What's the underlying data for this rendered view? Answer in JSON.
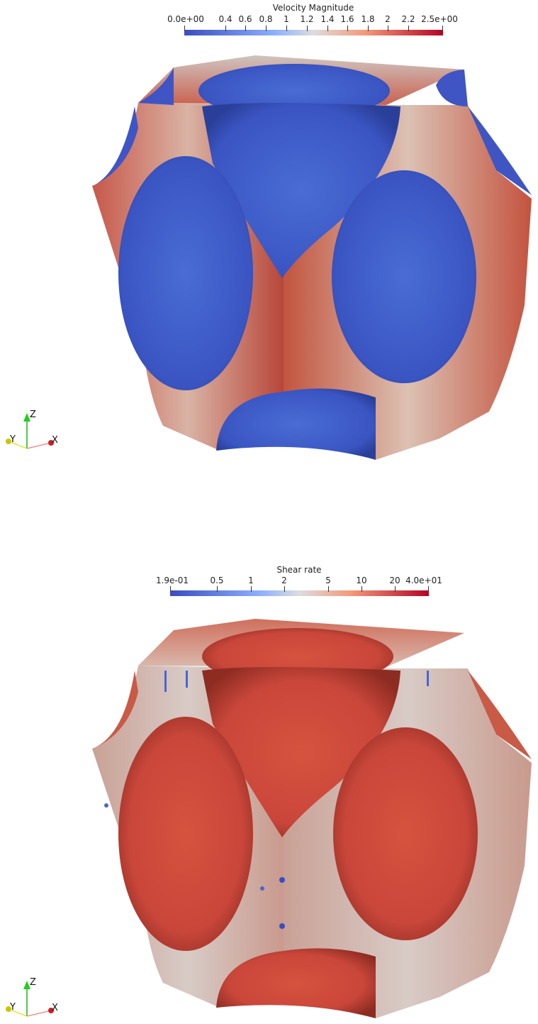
{
  "velocity_panel": {
    "colorbar": {
      "title": "Velocity Magnitude",
      "labels": [
        "0.0e+00",
        "0.4",
        "0.6",
        "0.8",
        "1",
        "1.2",
        "1.4",
        "1.6",
        "1.8",
        "2",
        "2.2",
        "2.5e+00"
      ],
      "range": [
        0.0,
        2.5
      ],
      "colormap": "cool-to-warm",
      "colors": [
        "#3b4cc0",
        "#8db0fe",
        "#dddddd",
        "#f4987a",
        "#b40426"
      ]
    },
    "axes": {
      "z": "Z",
      "y": "Y",
      "x": "X"
    }
  },
  "shear_panel": {
    "colorbar": {
      "title": "Shear rate",
      "labels": [
        "1.9e-01",
        "0.5",
        "1",
        "2",
        "5",
        "10",
        "20",
        "4.0e+01"
      ],
      "range": [
        0.19,
        40.0
      ],
      "scale": "log",
      "colormap": "cool-to-warm",
      "colors": [
        "#3b4cc0",
        "#8db0fe",
        "#dddddd",
        "#f4987a",
        "#b40426"
      ]
    },
    "axes": {
      "z": "Z",
      "y": "Y",
      "x": "X"
    }
  }
}
